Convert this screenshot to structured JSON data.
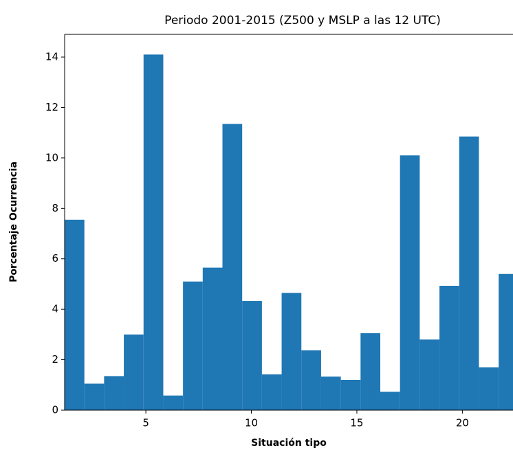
{
  "chart_data": {
    "type": "histogram",
    "title": "Periodo 2001-2015 (Z500 y MSLP a las 12 UTC)",
    "x_label": "Situación tipo",
    "y_label": "Porcentaje Ocurrencia",
    "bins": [
      1.15,
      2.085,
      3.02,
      3.955,
      4.89,
      5.825,
      6.76,
      7.695,
      8.63,
      9.565,
      10.5,
      11.435,
      12.37,
      13.305,
      14.24,
      15.175,
      16.11,
      17.045,
      17.98,
      18.915,
      19.85,
      20.785,
      21.72,
      22.655
    ],
    "values": [
      7.55,
      1.05,
      1.35,
      3.0,
      14.1,
      0.58,
      5.1,
      5.65,
      11.35,
      4.33,
      1.42,
      4.65,
      2.37,
      1.33,
      1.2,
      3.05,
      0.73,
      10.1,
      2.8,
      4.93,
      10.85,
      1.7,
      5.4
    ],
    "color": "#1f77b4",
    "xlim": [
      1.15,
      22.4
    ],
    "xticks": [
      5,
      10,
      15,
      20
    ],
    "ylim": [
      0,
      14.9
    ],
    "yticks": [
      0,
      2,
      4,
      6,
      8,
      10,
      12,
      14
    ]
  }
}
